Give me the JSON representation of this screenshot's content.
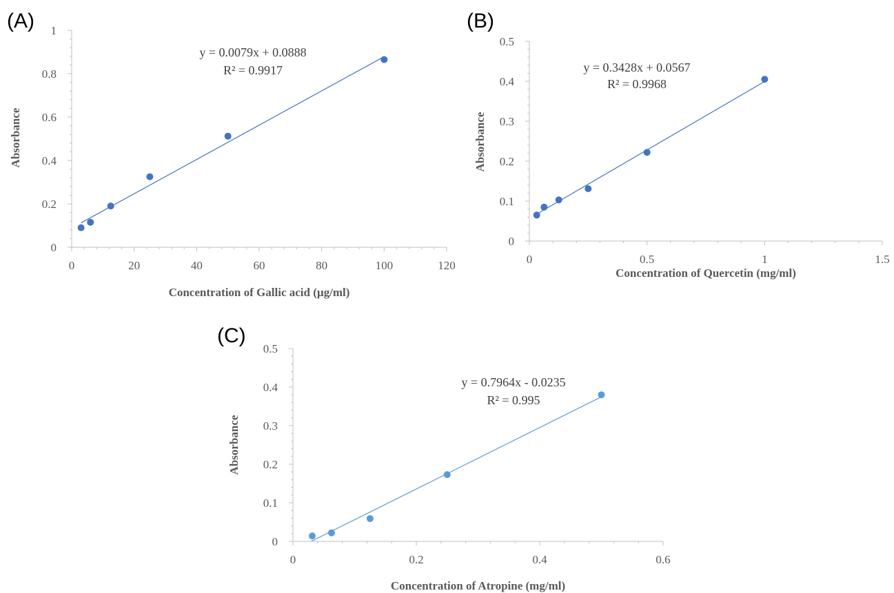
{
  "chart_data": [
    {
      "type": "scatter",
      "panel_label": "(A)",
      "xlabel": "Concentration of Gallic acid (µg/ml)",
      "ylabel": "Absorbance",
      "xlim": [
        0,
        120
      ],
      "ylim": [
        0,
        1
      ],
      "x_ticks": [
        0,
        20,
        40,
        60,
        80,
        100,
        120
      ],
      "y_ticks": [
        0,
        0.2,
        0.4,
        0.6,
        0.8,
        1
      ],
      "x_tick_labels": [
        "0",
        "20",
        "40",
        "60",
        "80",
        "100",
        "120"
      ],
      "y_tick_labels": [
        "0",
        "0.2",
        "0.4",
        "0.6",
        "0.8",
        "1"
      ],
      "marker_color": "#4472c4",
      "points": [
        {
          "x": 3,
          "y": 0.09
        },
        {
          "x": 6,
          "y": 0.115
        },
        {
          "x": 12.5,
          "y": 0.19
        },
        {
          "x": 25,
          "y": 0.325
        },
        {
          "x": 50,
          "y": 0.512
        },
        {
          "x": 100,
          "y": 0.865
        }
      ],
      "trendline": {
        "slope": 0.0079,
        "intercept": 0.0888,
        "x_start": 3,
        "x_end": 100
      },
      "equation": "y = 0.0079x + 0.0888",
      "r_squared": "R² = 0.9917"
    },
    {
      "type": "scatter",
      "panel_label": "(B)",
      "xlabel": "Concentration of Quercetin (mg/ml)",
      "ylabel": "Absorbance",
      "xlim": [
        0,
        1.5
      ],
      "ylim": [
        0,
        0.5
      ],
      "x_ticks": [
        0,
        0.5,
        1,
        1.5
      ],
      "y_ticks": [
        0,
        0.1,
        0.2,
        0.3,
        0.4,
        0.5
      ],
      "x_tick_labels": [
        "0",
        "0.5",
        "1",
        "1.5"
      ],
      "y_tick_labels": [
        "0",
        "0.1",
        "0.2",
        "0.3",
        "0.4",
        "0.5"
      ],
      "marker_color": "#4472c4",
      "points": [
        {
          "x": 0.03125,
          "y": 0.065
        },
        {
          "x": 0.0625,
          "y": 0.085
        },
        {
          "x": 0.125,
          "y": 0.103
        },
        {
          "x": 0.25,
          "y": 0.131
        },
        {
          "x": 0.5,
          "y": 0.222
        },
        {
          "x": 1,
          "y": 0.405
        }
      ],
      "trendline": {
        "slope": 0.3428,
        "intercept": 0.0567,
        "x_start": 0.03125,
        "x_end": 1
      },
      "equation": "y = 0.3428x + 0.0567",
      "r_squared": "R² = 0.9968"
    },
    {
      "type": "scatter",
      "panel_label": "(C)",
      "xlabel": "Concentration of Atropine (mg/ml)",
      "ylabel": "Absorbance",
      "xlim": [
        0,
        0.6
      ],
      "ylim": [
        0,
        0.5
      ],
      "x_ticks": [
        0,
        0.2,
        0.4,
        0.6
      ],
      "y_ticks": [
        0,
        0.1,
        0.2,
        0.3,
        0.4,
        0.5
      ],
      "x_tick_labels": [
        "0",
        "0.2",
        "0.4",
        "0.6"
      ],
      "y_tick_labels": [
        "0",
        "0.1",
        "0.2",
        "0.3",
        "0.4",
        "0.5"
      ],
      "marker_color": "#5b9bd5",
      "points": [
        {
          "x": 0.03125,
          "y": 0.014
        },
        {
          "x": 0.0625,
          "y": 0.022
        },
        {
          "x": 0.125,
          "y": 0.059
        },
        {
          "x": 0.25,
          "y": 0.173
        },
        {
          "x": 0.5,
          "y": 0.38
        }
      ],
      "trendline": {
        "slope": 0.7964,
        "intercept": -0.0235,
        "x_start": 0.0295,
        "x_end": 0.5
      },
      "equation": "y = 0.7964x - 0.0235",
      "r_squared": "R² = 0.995"
    }
  ]
}
